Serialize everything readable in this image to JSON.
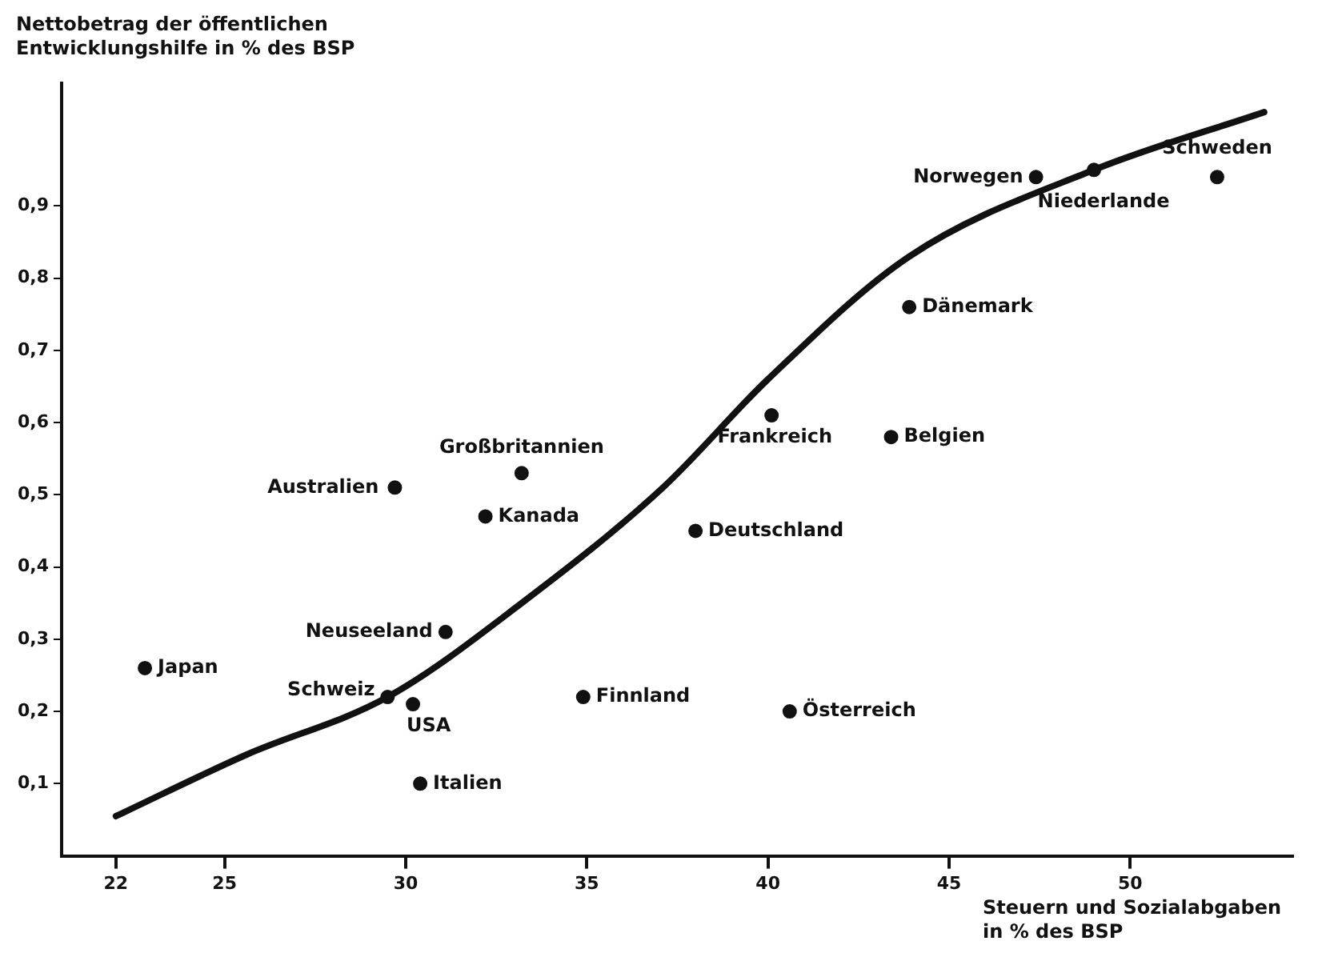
{
  "chart_data": {
    "type": "scatter",
    "ylabel": "Nettobetrag der öffentlichen Entwicklungshilfe in % des BSP",
    "xlabel": "Steuern und Sozialabgaben in % des BSP",
    "xlim": [
      20.5,
      54.5
    ],
    "xticks": [
      22,
      25,
      30,
      35,
      40,
      45,
      50
    ],
    "ylim": [
      0,
      1.07
    ],
    "yticks": [
      {
        "value": 0.1,
        "label": "0,1"
      },
      {
        "value": 0.2,
        "label": "0,2"
      },
      {
        "value": 0.3,
        "label": "0,3"
      },
      {
        "value": 0.4,
        "label": "0,4"
      },
      {
        "value": 0.5,
        "label": "0,5"
      },
      {
        "value": 0.6,
        "label": "0,6"
      },
      {
        "value": 0.7,
        "label": "0,7"
      },
      {
        "value": 0.8,
        "label": "0,8"
      },
      {
        "value": 0.9,
        "label": "0,9"
      }
    ],
    "grid": false,
    "legend": false,
    "series": [
      {
        "marker": "circle",
        "color": "#111111",
        "x": [
          22.8,
          29.5,
          30.2,
          30.4,
          31.1,
          29.7,
          32.2,
          33.2,
          34.9,
          38.0,
          40.1,
          40.6,
          43.4,
          43.9,
          47.4,
          49.0,
          52.4
        ],
        "values": [
          0.26,
          0.22,
          0.21,
          0.1,
          0.31,
          0.51,
          0.47,
          0.53,
          0.22,
          0.45,
          0.61,
          0.2,
          0.58,
          0.76,
          0.94,
          0.95,
          0.94
        ]
      },
      {
        "type": "line",
        "marker": "none",
        "color": "#111111",
        "x": [
          22,
          25.6,
          29.5,
          33.2,
          37.1,
          40.0,
          43.9,
          49.0,
          53.7
        ],
        "values": [
          0.055,
          0.14,
          0.22,
          0.35,
          0.51,
          0.66,
          0.83,
          0.95,
          1.03
        ]
      }
    ],
    "annotations": [
      {
        "text": "Japan",
        "x": 22.8,
        "y": 0.26
      },
      {
        "text": "Schweiz",
        "x": 29.5,
        "y": 0.22
      },
      {
        "text": "USA",
        "x": 30.2,
        "y": 0.21
      },
      {
        "text": "Italien",
        "x": 30.4,
        "y": 0.1
      },
      {
        "text": "Neuseeland",
        "x": 31.1,
        "y": 0.31
      },
      {
        "text": "Australien",
        "x": 29.7,
        "y": 0.51
      },
      {
        "text": "Kanada",
        "x": 32.2,
        "y": 0.47
      },
      {
        "text": "Großbritannien",
        "x": 33.2,
        "y": 0.53
      },
      {
        "text": "Finnland",
        "x": 34.9,
        "y": 0.22
      },
      {
        "text": "Deutschland",
        "x": 38.0,
        "y": 0.45
      },
      {
        "text": "Frankreich",
        "x": 40.1,
        "y": 0.61
      },
      {
        "text": "Österreich",
        "x": 40.6,
        "y": 0.2
      },
      {
        "text": "Belgien",
        "x": 43.4,
        "y": 0.58
      },
      {
        "text": "Dänemark",
        "x": 43.9,
        "y": 0.76
      },
      {
        "text": "Norwegen",
        "x": 47.4,
        "y": 0.94
      },
      {
        "text": "Niederlande",
        "x": 49.0,
        "y": 0.95
      },
      {
        "text": "Schweden",
        "x": 52.4,
        "y": 0.94
      }
    ]
  }
}
